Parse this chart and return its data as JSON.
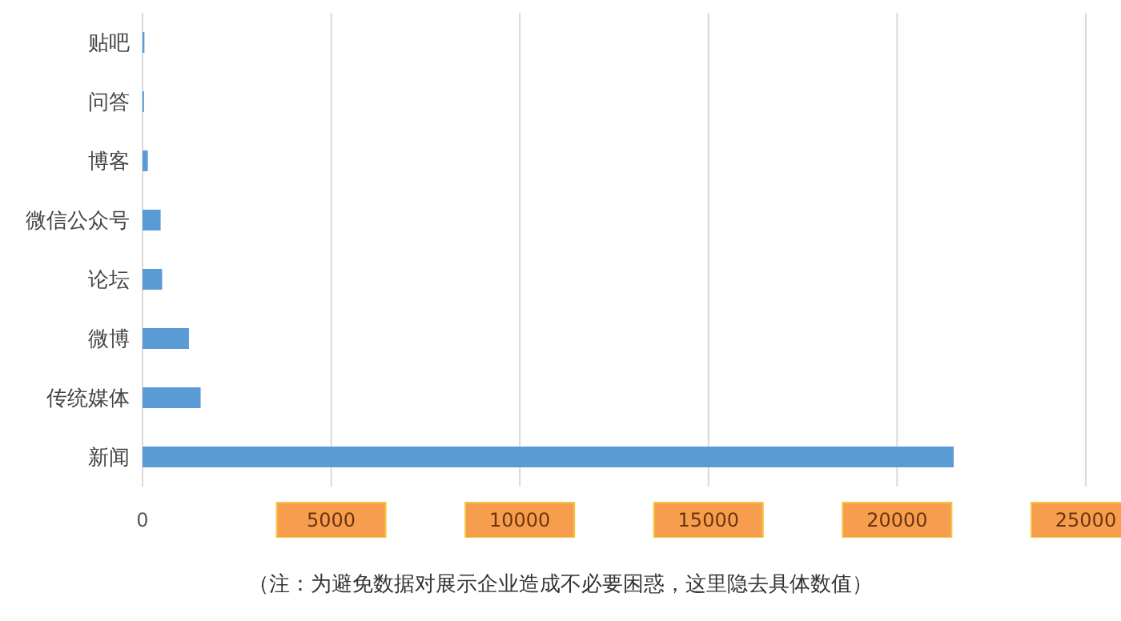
{
  "chart_data": {
    "type": "bar",
    "orientation": "horizontal",
    "categories": [
      "贴吧",
      "问答",
      "博客",
      "微信公众号",
      "论坛",
      "微博",
      "传统媒体",
      "新闻"
    ],
    "values": [
      50,
      40,
      140,
      480,
      520,
      1230,
      1540,
      21500
    ],
    "color": "#5b9bd5",
    "xlim": [
      0,
      25000
    ],
    "xticks": [
      0,
      5000,
      10000,
      15000,
      20000,
      25000
    ],
    "grid": "x",
    "annotations": [
      "（注：为避免数据对展示企业造成不必要困惑，这里隐去具体数值）"
    ]
  }
}
